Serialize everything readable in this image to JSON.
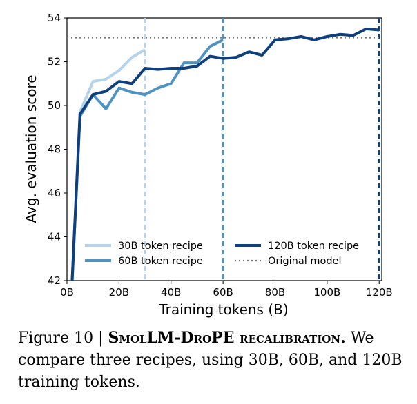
{
  "chart_data": {
    "type": "line",
    "xlabel": "Training tokens (B)",
    "ylabel": "Avg. evaluation score",
    "xlim": [
      0,
      121
    ],
    "ylim": [
      42,
      54
    ],
    "xticks": [
      0,
      20,
      40,
      60,
      80,
      100,
      120
    ],
    "xtick_labels": [
      "0B",
      "20B",
      "40B",
      "60B",
      "80B",
      "100B",
      "120B"
    ],
    "yticks": [
      42,
      44,
      46,
      48,
      50,
      52,
      54
    ],
    "ytick_labels": [
      "42",
      "44",
      "46",
      "48",
      "50",
      "52",
      "54"
    ],
    "grid": false,
    "legend_position": "lower-center",
    "series": [
      {
        "name": "30B token recipe",
        "color": "#b5d4ea",
        "x": [
          2,
          5,
          10,
          15,
          20,
          25,
          30
        ],
        "y": [
          42.0,
          49.7,
          51.1,
          51.2,
          51.6,
          52.2,
          52.55
        ]
      },
      {
        "name": "60B token recipe",
        "color": "#4e93c3",
        "x": [
          2,
          5,
          10,
          15,
          20,
          25,
          30,
          35,
          40,
          45,
          50,
          55,
          60
        ],
        "y": [
          42.0,
          49.5,
          50.5,
          49.85,
          50.8,
          50.6,
          50.5,
          50.8,
          51.0,
          51.95,
          51.95,
          52.7,
          53.0
        ]
      },
      {
        "name": "120B token recipe",
        "color": "#0e3f7e",
        "x": [
          2,
          5,
          10,
          15,
          20,
          25,
          30,
          35,
          40,
          45,
          50,
          55,
          60,
          65,
          70,
          75,
          80,
          85,
          90,
          95,
          100,
          105,
          110,
          115,
          120
        ],
        "y": [
          42.0,
          49.6,
          50.5,
          50.65,
          51.1,
          51.0,
          51.7,
          51.65,
          51.7,
          51.7,
          51.8,
          52.25,
          52.15,
          52.2,
          52.45,
          52.3,
          53.0,
          53.05,
          53.15,
          53.0,
          53.15,
          53.25,
          53.2,
          53.5,
          53.45
        ]
      }
    ],
    "reference_line": {
      "name": "Original model",
      "y": 53.1,
      "color": "#777777"
    },
    "vertical_lines": [
      {
        "x": 30,
        "color": "#b5d4ea"
      },
      {
        "x": 60,
        "color": "#4e93c3"
      },
      {
        "x": 120,
        "color": "#0e3f7e"
      }
    ]
  },
  "caption": {
    "label": "Figure 10 | ",
    "title": "SmolLM-DroPE recalibration.",
    "text": " We compare three recipes, using 30B, 60B, and 120B training tokens."
  }
}
